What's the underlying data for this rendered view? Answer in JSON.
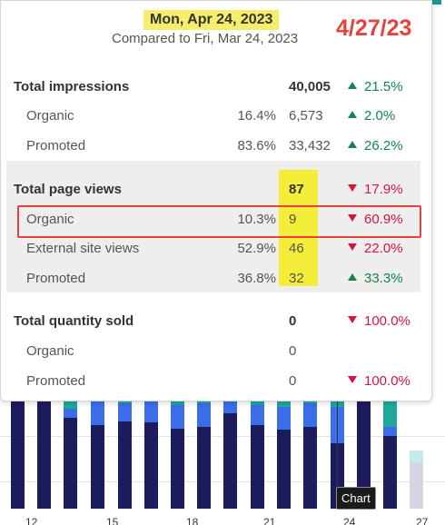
{
  "header": {
    "date": "Mon, Apr 24, 2023",
    "compared": "Compared to Fri, Mar 24, 2023",
    "annotation_date": "4/27/23"
  },
  "rows": [
    {
      "label": "Total impressions",
      "type": "main",
      "pct": "",
      "value": "40,005",
      "change": "21.5%",
      "dir": "up"
    },
    {
      "label": "Organic",
      "type": "sub",
      "pct": "16.4%",
      "value": "6,573",
      "change": "2.0%",
      "dir": "up"
    },
    {
      "label": "Promoted",
      "type": "sub",
      "pct": "83.6%",
      "value": "33,432",
      "change": "26.2%",
      "dir": "up"
    },
    {
      "label": "Total page views",
      "type": "main",
      "pct": "",
      "value": "87",
      "change": "17.9%",
      "dir": "down"
    },
    {
      "label": "Organic",
      "type": "sub",
      "pct": "10.3%",
      "value": "9",
      "change": "60.9%",
      "dir": "down"
    },
    {
      "label": "External site views",
      "type": "sub",
      "pct": "52.9%",
      "value": "46",
      "change": "22.0%",
      "dir": "down"
    },
    {
      "label": "Promoted",
      "type": "sub",
      "pct": "36.8%",
      "value": "32",
      "change": "33.3%",
      "dir": "up"
    },
    {
      "label": "Total quantity sold",
      "type": "main",
      "pct": "",
      "value": "0",
      "change": "100.0%",
      "dir": "down"
    },
    {
      "label": "Organic",
      "type": "sub",
      "pct": "",
      "value": "0",
      "change": "",
      "dir": ""
    },
    {
      "label": "Promoted",
      "type": "sub",
      "pct": "",
      "value": "0",
      "change": "100.0%",
      "dir": "down"
    }
  ],
  "chart": {
    "hover_label": "Chart",
    "axis_labels": [
      "12",
      "15",
      "18",
      "21",
      "24",
      "27"
    ]
  },
  "colors": {
    "organic": "#1b1b5e",
    "external": "#3b6de8",
    "promoted": "#1fa89a",
    "up": "#17844a",
    "down": "#d4163c",
    "highlight": "#f4ee3a",
    "annotation": "#e8413c"
  }
}
